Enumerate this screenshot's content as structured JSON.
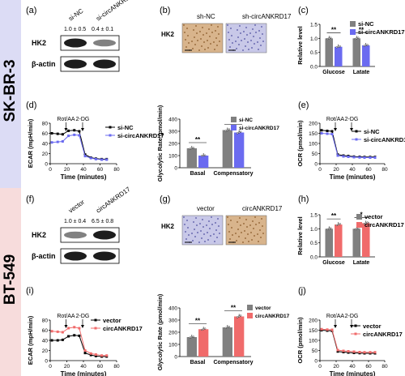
{
  "colors": {
    "sk_band": "#dcdcf5",
    "bt_band": "#f7dcdc",
    "nc": "#808080",
    "si": "#6b6bf0",
    "circ": "#f06b6b"
  },
  "groups": {
    "top": "SK-BR-3",
    "bottom": "BT-549"
  },
  "panel_labels": [
    "(a)",
    "(b)",
    "(c)",
    "(d)",
    "(e)",
    "(f)",
    "(g)",
    "(h)",
    "(i)",
    "(j)"
  ],
  "panel_a": {
    "lanes": [
      "si-NC",
      "si-circANKRD17"
    ],
    "ratios": [
      "1.0 ± 0.5",
      "0.4 ± 0.1"
    ],
    "rows": [
      "HK2",
      "β-actin"
    ]
  },
  "panel_b": {
    "row": "HK2",
    "cols": [
      "sh-NC",
      "sh-circANKRD17"
    ]
  },
  "panel_f": {
    "lanes": [
      "vector",
      "circANKRD17"
    ],
    "ratios": [
      "1.0 ± 0.4",
      "6.5 ± 0.8"
    ],
    "rows": [
      "HK2",
      "β-actin"
    ]
  },
  "panel_g": {
    "row": "HK2",
    "cols": [
      "vector",
      "circANKRD17"
    ]
  },
  "chart_data": [
    {
      "panel": "c",
      "type": "bar",
      "ylabel": "Relative level",
      "categories": [
        "Glucose",
        "Latate"
      ],
      "ylim": [
        0,
        1.5
      ],
      "yticks": [
        "0.0",
        "0.5",
        "1.0",
        "1.5"
      ],
      "series": [
        {
          "name": "si-NC",
          "values": [
            1.0,
            1.0
          ]
        },
        {
          "name": "si-circANKRD17",
          "values": [
            0.7,
            0.75
          ]
        }
      ],
      "annotations": [
        "**",
        "**"
      ],
      "legend": "top-right"
    },
    {
      "panel": "d",
      "type": "line",
      "xlabel": "Time (minutes)",
      "ylabel": "ECAR (mpH/min)",
      "xlim": [
        0,
        80
      ],
      "ylim": [
        0,
        80
      ],
      "xticks": [
        "0",
        "20",
        "40",
        "60",
        "80"
      ],
      "yticks": [
        "0",
        "20",
        "40",
        "60",
        "80"
      ],
      "annotations": [
        "Rot/AA",
        "2-DG"
      ],
      "series": [
        {
          "name": "si-NC",
          "x": [
            2,
            9,
            15,
            22,
            29,
            35,
            42,
            49,
            55,
            62,
            68
          ],
          "y": [
            60,
            59,
            58,
            65,
            66,
            64,
            18,
            12,
            10,
            9,
            9
          ]
        },
        {
          "name": "si-circANKRD17",
          "x": [
            2,
            9,
            15,
            22,
            29,
            35,
            42,
            49,
            55,
            62,
            68
          ],
          "y": [
            42,
            43,
            44,
            55,
            57,
            56,
            15,
            11,
            9,
            8,
            8
          ]
        }
      ]
    },
    {
      "panel": "d2",
      "type": "bar",
      "ylabel": "Glycolytic Rate (pmol/min)",
      "categories": [
        "Basal",
        "Compensatory"
      ],
      "ylim": [
        0,
        400
      ],
      "yticks": [
        "0",
        "100",
        "200",
        "300",
        "400"
      ],
      "series": [
        {
          "name": "si-NC",
          "values": [
            160,
            310
          ]
        },
        {
          "name": "si-circANKRD17",
          "values": [
            100,
            290
          ]
        }
      ],
      "annotations": [
        "**",
        "**"
      ],
      "legend": "top-right"
    },
    {
      "panel": "e",
      "type": "line",
      "xlabel": "Time (minutes)",
      "ylabel": "OCR (pmol/min)",
      "xlim": [
        0,
        80
      ],
      "ylim": [
        0,
        200
      ],
      "xticks": [
        "0",
        "20",
        "40",
        "60",
        "80"
      ],
      "yticks": [
        "0",
        "50",
        "100",
        "150",
        "200"
      ],
      "annotations": [
        "Rot/AA",
        "2-DG"
      ],
      "series": [
        {
          "name": "si-NC",
          "x": [
            2,
            9,
            15,
            22,
            29,
            35,
            42,
            49,
            55,
            62,
            68
          ],
          "y": [
            165,
            162,
            160,
            45,
            40,
            38,
            35,
            34,
            33,
            33,
            33
          ]
        },
        {
          "name": "si-circANKRD17",
          "x": [
            2,
            9,
            15,
            22,
            29,
            35,
            42,
            49,
            55,
            62,
            68
          ],
          "y": [
            150,
            148,
            146,
            40,
            36,
            34,
            32,
            31,
            30,
            30,
            30
          ]
        }
      ]
    },
    {
      "panel": "h",
      "type": "bar",
      "ylabel": "Relative level",
      "categories": [
        "Glucose",
        "Latate"
      ],
      "ylim": [
        0,
        1.5
      ],
      "yticks": [
        "0.0",
        "0.5",
        "1.0",
        "1.5"
      ],
      "series": [
        {
          "name": "vector",
          "values": [
            1.0,
            1.0
          ]
        },
        {
          "name": "circANKRD17",
          "values": [
            1.15,
            1.2
          ]
        }
      ],
      "annotations": [
        "**",
        "*"
      ],
      "legend": "top-right"
    },
    {
      "panel": "i",
      "type": "line",
      "xlabel": "Time (minutes)",
      "ylabel": "ECAR (mpH/min)",
      "xlim": [
        0,
        80
      ],
      "ylim": [
        0,
        80
      ],
      "xticks": [
        "0",
        "20",
        "40",
        "60",
        "80"
      ],
      "yticks": [
        "0",
        "20",
        "40",
        "60",
        "80"
      ],
      "annotations": [
        "Rot/AA",
        "2-DG"
      ],
      "series": [
        {
          "name": "vector",
          "x": [
            2,
            9,
            15,
            22,
            29,
            35,
            42,
            49,
            55,
            62,
            68
          ],
          "y": [
            40,
            40,
            41,
            48,
            50,
            49,
            15,
            11,
            9,
            8,
            8
          ]
        },
        {
          "name": "circANKRD17",
          "x": [
            2,
            9,
            15,
            22,
            29,
            35,
            42,
            49,
            55,
            62,
            68
          ],
          "y": [
            58,
            57,
            56,
            64,
            66,
            64,
            20,
            14,
            12,
            10,
            10
          ]
        }
      ]
    },
    {
      "panel": "i2",
      "type": "bar",
      "ylabel": "Glycolytic Rate (pmol/min)",
      "categories": [
        "Basal",
        "Compensatory"
      ],
      "ylim": [
        0,
        400
      ],
      "yticks": [
        "0",
        "100",
        "200",
        "300",
        "400"
      ],
      "series": [
        {
          "name": "vector",
          "values": [
            160,
            240
          ]
        },
        {
          "name": "circANKRD17",
          "values": [
            225,
            330
          ]
        }
      ],
      "annotations": [
        "**",
        "**"
      ],
      "legend": "top-right"
    },
    {
      "panel": "j",
      "type": "line",
      "xlabel": "Time (minutes)",
      "ylabel": "OCR (pmol/min)",
      "xlim": [
        0,
        80
      ],
      "ylim": [
        0,
        200
      ],
      "xticks": [
        "0",
        "20",
        "40",
        "60",
        "80"
      ],
      "yticks": [
        "0",
        "50",
        "100",
        "150",
        "200"
      ],
      "annotations": [
        "Rot/AA",
        "2-DG"
      ],
      "series": [
        {
          "name": "vector",
          "x": [
            2,
            9,
            15,
            22,
            29,
            35,
            42,
            49,
            55,
            62,
            68
          ],
          "y": [
            150,
            148,
            147,
            45,
            42,
            40,
            38,
            37,
            36,
            36,
            36
          ]
        },
        {
          "name": "circANKRD17",
          "x": [
            2,
            9,
            15,
            22,
            29,
            35,
            42,
            49,
            55,
            62,
            68
          ],
          "y": [
            155,
            153,
            152,
            52,
            48,
            46,
            44,
            42,
            41,
            41,
            41
          ]
        }
      ]
    }
  ]
}
